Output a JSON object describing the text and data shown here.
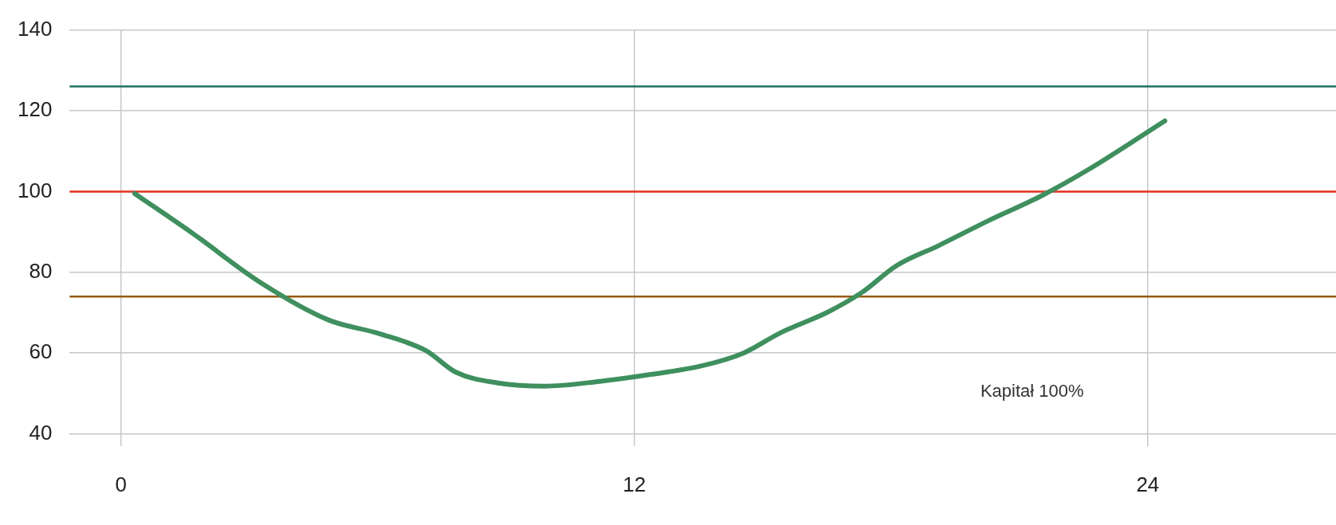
{
  "chart_data": {
    "type": "line",
    "x": [
      0.32,
      1.68,
      3.27,
      4.85,
      6.04,
      7.13,
      7.82,
      8.81,
      9.9,
      11.19,
      12.38,
      13.56,
      14.55,
      15.41,
      16.53,
      17.33,
      18.12,
      19.11,
      20.3,
      21.49,
      22.67,
      24.4
    ],
    "series": [
      {
        "color": "#3f8f5f",
        "values": [
          99.5,
          89.6,
          77.4,
          68.2,
          64.8,
          60.6,
          55.3,
          52.6,
          51.8,
          53.0,
          54.7,
          56.8,
          60.0,
          65.0,
          70.2,
          75.1,
          81.6,
          86.6,
          92.9,
          98.8,
          105.8,
          117.5
        ]
      }
    ],
    "xlim": [
      -1.2,
      28.4
    ],
    "ylim": [
      37,
      140
    ],
    "xticks": [
      0,
      12,
      24
    ],
    "yticks": [
      40,
      60,
      80,
      100,
      120,
      140
    ],
    "grid": true,
    "ref_lines": [
      {
        "axis": "y",
        "value": 126,
        "color": "#1e6e66"
      },
      {
        "axis": "y",
        "value": 100,
        "color": "#e53222"
      },
      {
        "axis": "y",
        "value": 74,
        "color": "#9a5a10"
      }
    ],
    "annotations": [
      "Kapitał 100%"
    ]
  }
}
